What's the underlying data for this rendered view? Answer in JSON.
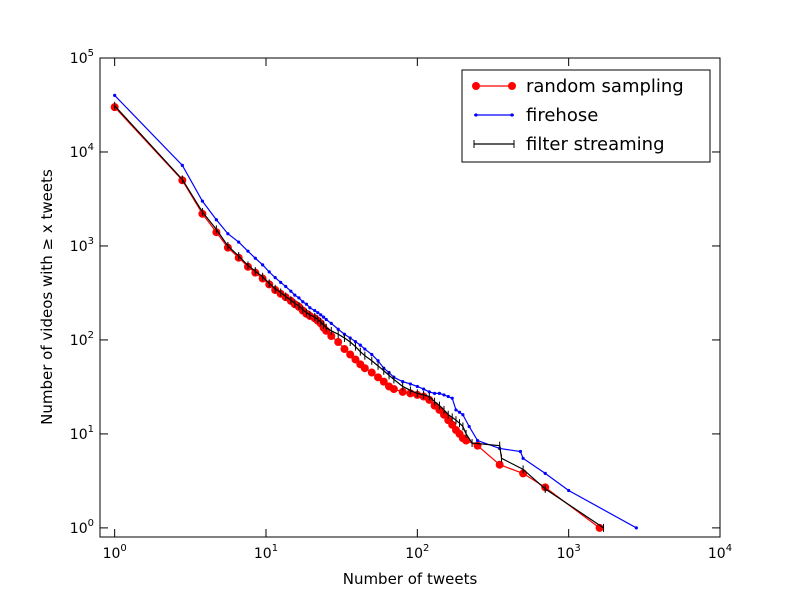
{
  "chart_data": {
    "type": "line",
    "xscale": "log",
    "yscale": "log",
    "xlim": [
      0.8,
      10000
    ],
    "ylim": [
      0.8,
      100000
    ],
    "xlabel": "Number of tweets",
    "ylabel": "Number of videos with ≥ x tweets",
    "legend_position": "top-right",
    "grid": false,
    "x_ticks": [
      {
        "value": 1,
        "base": "10",
        "exp": "0"
      },
      {
        "value": 10,
        "base": "10",
        "exp": "1"
      },
      {
        "value": 100,
        "base": "10",
        "exp": "2"
      },
      {
        "value": 1000,
        "base": "10",
        "exp": "3"
      },
      {
        "value": 10000,
        "base": "10",
        "exp": "4"
      }
    ],
    "y_ticks": [
      {
        "value": 1,
        "base": "10",
        "exp": "0"
      },
      {
        "value": 10,
        "base": "10",
        "exp": "1"
      },
      {
        "value": 100,
        "base": "10",
        "exp": "2"
      },
      {
        "value": 1000,
        "base": "10",
        "exp": "3"
      },
      {
        "value": 10000,
        "base": "10",
        "exp": "4"
      },
      {
        "value": 100000,
        "base": "10",
        "exp": "5"
      }
    ],
    "series": [
      {
        "name": "random sampling",
        "color": "#ff0000",
        "marker": "circle",
        "x": [
          1,
          2.8,
          3.8,
          4.7,
          5.6,
          6.6,
          7.6,
          8.5,
          9.5,
          10.5,
          11.5,
          12.5,
          13.5,
          14.6,
          15.5,
          16.5,
          17.5,
          18.5,
          19.5,
          21,
          22,
          23,
          24,
          25,
          27,
          30,
          33,
          36,
          39,
          42,
          45,
          50,
          55,
          60,
          65,
          70,
          80,
          90,
          100,
          110,
          120,
          130,
          140,
          150,
          160,
          170,
          180,
          190,
          200,
          210,
          250,
          350,
          500,
          700,
          1600
        ],
        "y": [
          30000,
          5000,
          2200,
          1400,
          960,
          750,
          600,
          520,
          450,
          390,
          340,
          310,
          285,
          260,
          240,
          225,
          205,
          190,
          180,
          170,
          160,
          150,
          135,
          125,
          110,
          95,
          80,
          70,
          62,
          55,
          50,
          45,
          40,
          36,
          32,
          30,
          28,
          27,
          26,
          25,
          23,
          20,
          18,
          16,
          14,
          12.5,
          11,
          10,
          9,
          8.5,
          7.5,
          4.7,
          3.8,
          2.7,
          1
        ]
      },
      {
        "name": "firehose",
        "color": "#0000ff",
        "marker": "point",
        "x": [
          1,
          2.8,
          3.8,
          4.7,
          5.6,
          6.6,
          7.6,
          8.5,
          9.5,
          10.5,
          11.5,
          12.5,
          13.5,
          14.6,
          15.5,
          16.5,
          17.5,
          18.5,
          19.5,
          21,
          22,
          23,
          24,
          25,
          27,
          30,
          33,
          36,
          39,
          42,
          45,
          50,
          55,
          60,
          65,
          70,
          80,
          90,
          100,
          110,
          120,
          130,
          140,
          150,
          160,
          170,
          180,
          190,
          200,
          220,
          250,
          350,
          480,
          500,
          700,
          1000,
          2800
        ],
        "y": [
          40000,
          7200,
          3000,
          1900,
          1350,
          1100,
          880,
          740,
          630,
          530,
          460,
          410,
          370,
          330,
          300,
          280,
          255,
          240,
          220,
          205,
          195,
          185,
          175,
          165,
          150,
          130,
          115,
          105,
          96,
          88,
          80,
          70,
          60,
          50,
          45,
          40,
          36,
          34,
          32,
          30,
          28,
          27,
          27,
          26,
          25,
          24,
          18,
          17,
          16,
          12,
          8.5,
          7,
          6.5,
          5.5,
          3.8,
          2.5,
          1
        ]
      },
      {
        "name": "filter streaming",
        "color": "#000000",
        "marker": "vline",
        "x": [
          1,
          2.8,
          3.8,
          4.7,
          5.6,
          6.6,
          7.6,
          8.5,
          9.5,
          10.5,
          11.5,
          12.5,
          13.5,
          14.6,
          15.5,
          16.5,
          17.5,
          18.5,
          19.5,
          21,
          22,
          23,
          24,
          25,
          27,
          30,
          33,
          36,
          39,
          42,
          45,
          50,
          55,
          60,
          65,
          70,
          80,
          90,
          100,
          110,
          120,
          130,
          140,
          150,
          160,
          170,
          180,
          190,
          200,
          210,
          230,
          350,
          360,
          500,
          700,
          1700
        ],
        "y": [
          31000,
          5100,
          2300,
          1500,
          1000,
          780,
          620,
          540,
          470,
          400,
          350,
          320,
          290,
          265,
          245,
          230,
          210,
          195,
          185,
          175,
          165,
          155,
          145,
          135,
          125,
          115,
          105,
          95,
          85,
          75,
          68,
          60,
          53,
          47,
          42,
          38,
          32,
          29,
          27,
          26,
          25,
          22,
          20,
          18,
          16,
          15,
          14,
          13,
          12,
          10,
          8,
          7.5,
          5.5,
          4.2,
          2.6,
          1
        ]
      }
    ]
  }
}
